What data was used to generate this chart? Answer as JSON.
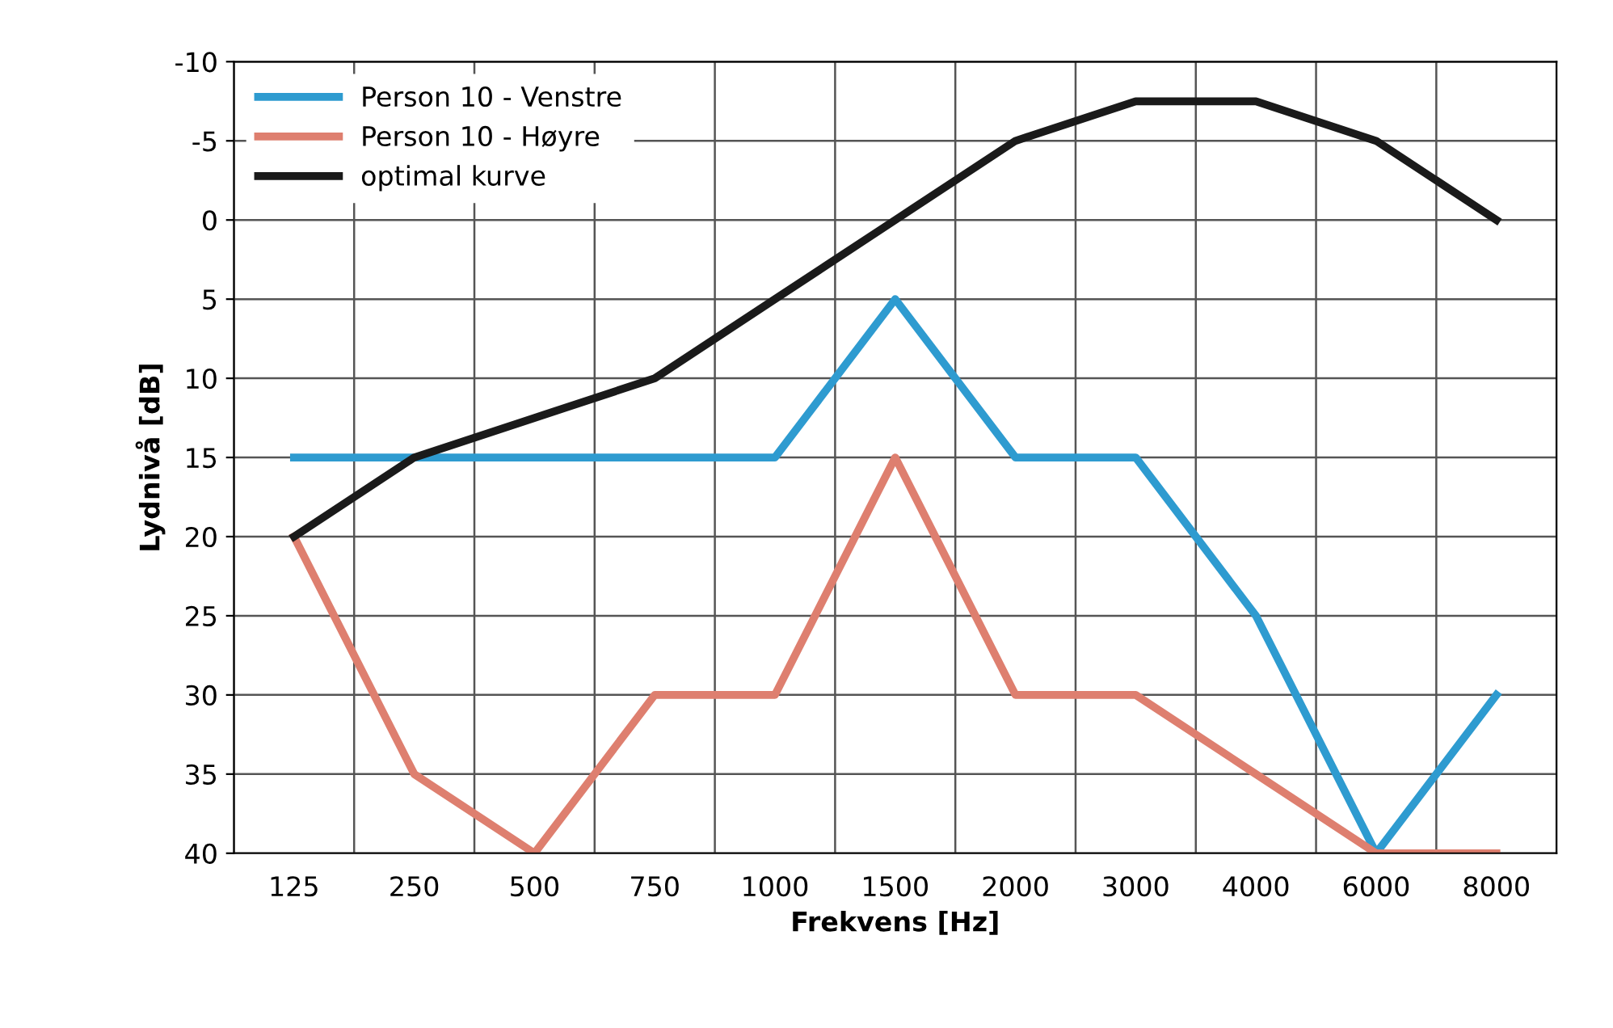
{
  "chart_data": {
    "type": "line",
    "xlabel": "Frekvens [Hz]",
    "ylabel": "Lydnivå [dB]",
    "categories": [
      "125",
      "250",
      "500",
      "750",
      "1000",
      "1500",
      "2000",
      "3000",
      "4000",
      "6000",
      "8000"
    ],
    "series": [
      {
        "name": "Person 10 - Venstre",
        "color": "#2e9bd0",
        "values": [
          15,
          15,
          15,
          15,
          15,
          5,
          15,
          15,
          25,
          40,
          30
        ]
      },
      {
        "name": "Person 10 - Høyre",
        "color": "#de7f6f",
        "values": [
          20,
          35,
          40,
          30,
          30,
          15,
          30,
          30,
          35,
          40,
          40
        ]
      },
      {
        "name": "optimal kurve",
        "color": "#1a1a1a",
        "values": [
          20,
          15,
          12.5,
          10,
          5,
          0,
          -5,
          -7.5,
          -7.5,
          -5,
          0
        ]
      }
    ],
    "ylim": [
      40,
      -10
    ],
    "yticks": [
      -10,
      -5,
      0,
      5,
      10,
      15,
      20,
      25,
      30,
      35,
      40
    ],
    "grid": true,
    "legend": "top left",
    "marker": "none",
    "line_style": "solid"
  }
}
